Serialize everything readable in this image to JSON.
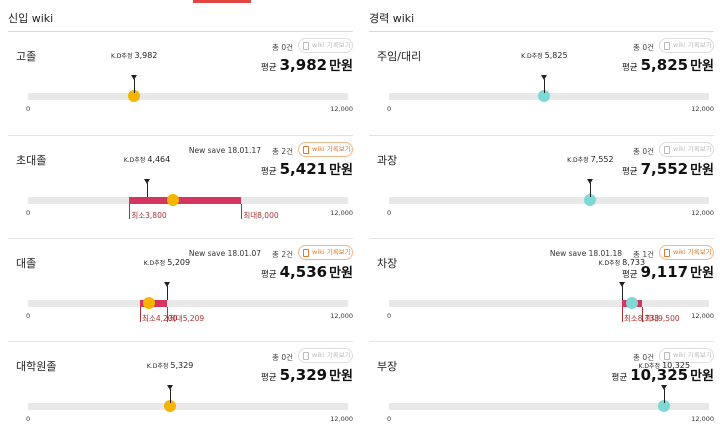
{
  "header": {
    "accent_color": "#e0453f"
  },
  "columns": [
    {
      "title": "신입 wiki",
      "cards": [
        {
          "label": "고졸",
          "new_save": "",
          "count": "총 0건",
          "wiki_button": "wiki 기록보기",
          "wiki_active": false,
          "avg_label": "평균",
          "avg_value": "3,982",
          "avg_unit": "만원",
          "kd_prefix": "K.D추정",
          "kd_value": "3,982",
          "kd": 3982,
          "marker": "yellow",
          "min_label": "",
          "min_value": "",
          "min": null,
          "max_label": "",
          "max_value": "",
          "max": null,
          "axis_min": "0",
          "axis_max": "12,000"
        },
        {
          "label": "초대졸",
          "new_save": "New save 18.01.17",
          "count": "총 2건",
          "wiki_button": "wiki 기록보기",
          "wiki_active": true,
          "avg_label": "평균",
          "avg_value": "5,421",
          "avg_unit": "만원",
          "kd_prefix": "K.D추정",
          "kd_value": "4,464",
          "kd": 4464,
          "avg": 5421,
          "marker": "yellow",
          "min_label": "최소",
          "min_value": "3,800",
          "min": 3800,
          "max_label": "최대",
          "max_value": "8,000",
          "max": 8000,
          "axis_min": "0",
          "axis_max": "12,000"
        },
        {
          "label": "대졸",
          "new_save": "New save 18.01.07",
          "count": "총 2건",
          "wiki_button": "wiki 기록보기",
          "wiki_active": true,
          "avg_label": "평균",
          "avg_value": "4,536",
          "avg_unit": "만원",
          "kd_prefix": "K.D추정",
          "kd_value": "5,209",
          "kd": 5209,
          "avg": 4536,
          "marker": "yellow",
          "min_label": "최소",
          "min_value": "4,200",
          "min": 4200,
          "max_label": "최대",
          "max_value": "5,209",
          "max": 5209,
          "axis_min": "0",
          "axis_max": "12,000"
        },
        {
          "label": "대학원졸",
          "new_save": "",
          "count": "총 0건",
          "wiki_button": "wiki 기록보기",
          "wiki_active": false,
          "avg_label": "평균",
          "avg_value": "5,329",
          "avg_unit": "만원",
          "kd_prefix": "K.D추정",
          "kd_value": "5,329",
          "kd": 5329,
          "marker": "yellow",
          "min_label": "",
          "min_value": "",
          "min": null,
          "max_label": "",
          "max_value": "",
          "max": null,
          "axis_min": "0",
          "axis_max": "12,000"
        }
      ]
    },
    {
      "title": "경력 wiki",
      "cards": [
        {
          "label": "주임/대리",
          "new_save": "",
          "count": "총 0건",
          "wiki_button": "wiki 기록보기",
          "wiki_active": false,
          "avg_label": "평균",
          "avg_value": "5,825",
          "avg_unit": "만원",
          "kd_prefix": "K.D추정",
          "kd_value": "5,825",
          "kd": 5825,
          "marker": "teal",
          "min_label": "",
          "min_value": "",
          "min": null,
          "max_label": "",
          "max_value": "",
          "max": null,
          "axis_min": "0",
          "axis_max": "12,000"
        },
        {
          "label": "과장",
          "new_save": "",
          "count": "총 0건",
          "wiki_button": "wiki 기록보기",
          "wiki_active": false,
          "avg_label": "평균",
          "avg_value": "7,552",
          "avg_unit": "만원",
          "kd_prefix": "K.D추정",
          "kd_value": "7,552",
          "kd": 7552,
          "marker": "teal",
          "min_label": "",
          "min_value": "",
          "min": null,
          "max_label": "",
          "max_value": "",
          "max": null,
          "axis_min": "0",
          "axis_max": "12,000"
        },
        {
          "label": "차장",
          "new_save": "New save 18.01.18",
          "count": "총 1건",
          "wiki_button": "wiki 기록보기",
          "wiki_active": true,
          "avg_label": "평균",
          "avg_value": "9,117",
          "avg_unit": "만원",
          "kd_prefix": "K.D추정",
          "kd_value": "8,733",
          "kd": 8733,
          "avg": 9117,
          "marker": "teal",
          "min_label": "최소",
          "min_value": "8,733",
          "min": 8733,
          "max_label": "최대",
          "max_value": "9,500",
          "max": 9500,
          "axis_min": "0",
          "axis_max": "12,000"
        },
        {
          "label": "부장",
          "new_save": "",
          "count": "총 0건",
          "wiki_button": "wiki 기록보기",
          "wiki_active": false,
          "avg_label": "평균",
          "avg_value": "10,325",
          "avg_unit": "만원",
          "kd_prefix": "K.D추정",
          "kd_value": "10,325",
          "kd": 10325,
          "marker": "teal",
          "min_label": "",
          "min_value": "",
          "min": null,
          "max_label": "",
          "max_value": "",
          "max": null,
          "axis_min": "0",
          "axis_max": "12,000"
        }
      ]
    }
  ],
  "scale_max": 12000
}
